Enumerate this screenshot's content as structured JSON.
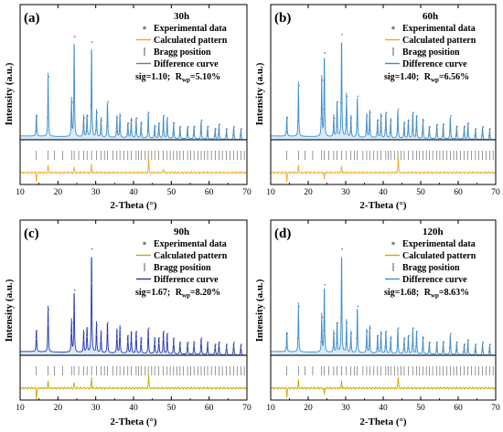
{
  "chart_data": [
    {
      "type": "line",
      "panel_label": "(a)",
      "legend_title": "30h",
      "xlabel": "2-Theta (°)",
      "ylabel": "Intensity (a.u.)",
      "xlim": [
        10,
        70
      ],
      "x_ticks": [
        "10",
        "20",
        "30",
        "40",
        "50",
        "60",
        "70"
      ],
      "grid": false,
      "legend_position": "top-right",
      "legend": [
        "Experimental data",
        "Calculated pattern",
        "Bragg position",
        "Difference curve"
      ],
      "fit": {
        "sig": "sig=1.10;",
        "rwp_prefix": "R",
        "rwp_sub": "wp",
        "rwp_value": "=5.10%"
      },
      "colors": {
        "experimental": "#7b8494",
        "calculated": "#f5a623",
        "bragg": "#555555",
        "difference": "#3a8fd0",
        "fill": "#cfe6f7"
      },
      "peaks": [
        [
          14.3,
          0.22
        ],
        [
          17.4,
          0.58
        ],
        [
          23.6,
          0.35
        ],
        [
          24.3,
          0.95
        ],
        [
          26.8,
          0.2
        ],
        [
          27.7,
          0.22
        ],
        [
          28.9,
          0.9
        ],
        [
          30.2,
          0.25
        ],
        [
          31.4,
          0.18
        ],
        [
          33.1,
          0.35
        ],
        [
          35.6,
          0.2
        ],
        [
          36.4,
          0.22
        ],
        [
          38.5,
          0.15
        ],
        [
          39.4,
          0.18
        ],
        [
          40.7,
          0.2
        ],
        [
          42.0,
          0.15
        ],
        [
          43.9,
          0.25
        ],
        [
          45.6,
          0.12
        ],
        [
          46.7,
          0.15
        ],
        [
          47.9,
          0.22
        ],
        [
          48.9,
          0.2
        ],
        [
          50.6,
          0.15
        ],
        [
          52.3,
          0.12
        ],
        [
          54.3,
          0.12
        ],
        [
          56.0,
          0.12
        ],
        [
          57.9,
          0.18
        ],
        [
          59.6,
          0.12
        ],
        [
          61.6,
          0.1
        ],
        [
          62.6,
          0.14
        ],
        [
          64.6,
          0.1
        ],
        [
          66.5,
          0.12
        ],
        [
          68.4,
          0.1
        ]
      ],
      "bragg_positions": [
        14.3,
        17.4,
        19.1,
        21.2,
        23.6,
        24.3,
        25.5,
        26.8,
        27.7,
        28.9,
        30.2,
        31.4,
        32.3,
        33.1,
        34.6,
        35.6,
        36.4,
        37.5,
        38.5,
        39.4,
        40.7,
        41.3,
        42.0,
        43.1,
        43.9,
        44.8,
        45.6,
        46.7,
        47.9,
        48.9,
        49.7,
        50.6,
        51.5,
        52.3,
        53.2,
        54.3,
        55.1,
        56.0,
        57.0,
        57.9,
        58.8,
        59.6,
        60.6,
        61.6,
        62.6,
        63.5,
        64.6,
        65.5,
        66.5,
        67.4,
        68.4,
        69.3
      ],
      "difference_spikes": [
        [
          14.3,
          -0.08
        ],
        [
          17.4,
          0.06
        ],
        [
          24.3,
          0.05
        ],
        [
          28.9,
          0.08
        ],
        [
          44.0,
          0.14
        ],
        [
          47.9,
          0.04
        ]
      ]
    },
    {
      "type": "line",
      "panel_label": "(b)",
      "legend_title": "60h",
      "xlabel": "2-Theta (°)",
      "ylabel": "Intensity (a.u.)",
      "xlim": [
        10,
        70
      ],
      "x_ticks": [
        "10",
        "20",
        "30",
        "40",
        "50",
        "60",
        "70"
      ],
      "grid": false,
      "legend_position": "top-right",
      "legend": [
        "Experimental data",
        "Calculated pattern",
        "Bragg position",
        "Difference curve"
      ],
      "fit": {
        "sig": "sig=1.40;",
        "rwp_prefix": "R",
        "rwp_sub": "wp",
        "rwp_value": "=6.56%"
      },
      "colors": {
        "experimental": "#7b8494",
        "calculated": "#f5a623",
        "bragg": "#555555",
        "difference": "#3a8fd0",
        "fill": "#cfe6f7"
      },
      "peaks": [
        [
          14.3,
          0.2
        ],
        [
          17.4,
          0.5
        ],
        [
          23.6,
          0.55
        ],
        [
          24.3,
          0.8
        ],
        [
          26.8,
          0.2
        ],
        [
          27.7,
          0.35
        ],
        [
          28.9,
          0.97
        ],
        [
          30.2,
          0.4
        ],
        [
          31.4,
          0.2
        ],
        [
          33.1,
          0.4
        ],
        [
          35.6,
          0.22
        ],
        [
          36.4,
          0.25
        ],
        [
          38.5,
          0.18
        ],
        [
          39.4,
          0.22
        ],
        [
          40.7,
          0.25
        ],
        [
          42.0,
          0.18
        ],
        [
          43.9,
          0.28
        ],
        [
          45.6,
          0.15
        ],
        [
          46.7,
          0.18
        ],
        [
          47.9,
          0.25
        ],
        [
          48.9,
          0.22
        ],
        [
          50.6,
          0.18
        ],
        [
          52.3,
          0.12
        ],
        [
          54.3,
          0.14
        ],
        [
          56.0,
          0.14
        ],
        [
          57.9,
          0.22
        ],
        [
          59.6,
          0.12
        ],
        [
          61.6,
          0.12
        ],
        [
          62.6,
          0.15
        ],
        [
          64.6,
          0.1
        ],
        [
          66.5,
          0.12
        ],
        [
          68.4,
          0.1
        ]
      ],
      "bragg_positions": [
        14.3,
        17.4,
        19.1,
        21.2,
        23.6,
        24.3,
        25.5,
        26.8,
        27.7,
        28.9,
        30.2,
        31.4,
        32.3,
        33.1,
        34.6,
        35.6,
        36.4,
        37.5,
        38.5,
        39.4,
        40.7,
        41.3,
        42.0,
        43.1,
        43.9,
        44.8,
        45.6,
        46.7,
        47.9,
        48.9,
        49.7,
        50.6,
        51.5,
        52.3,
        53.2,
        54.3,
        55.1,
        56.0,
        57.0,
        57.9,
        58.8,
        59.6,
        60.6,
        61.6,
        62.6,
        63.5,
        64.6,
        65.5,
        66.5,
        67.4,
        68.4,
        69.3
      ],
      "difference_spikes": [
        [
          14.3,
          -0.08
        ],
        [
          17.4,
          0.06
        ],
        [
          24.3,
          -0.06
        ],
        [
          28.9,
          0.06
        ],
        [
          44.0,
          0.14
        ]
      ]
    },
    {
      "type": "line",
      "panel_label": "(c)",
      "legend_title": "90h",
      "xlabel": "2-Theta (°)",
      "ylabel": "Intensity (a.u.)",
      "xlim": [
        10,
        70
      ],
      "x_ticks": [
        "10",
        "20",
        "30",
        "40",
        "50",
        "60",
        "70"
      ],
      "grid": false,
      "legend_position": "top-right",
      "legend": [
        "Experimental data",
        "Calculated pattern",
        "Bragg position",
        "Difference curve"
      ],
      "fit": {
        "sig": "sig=1.67;",
        "rwp_prefix": "R",
        "rwp_sub": "wp",
        "rwp_value": "=8.20%"
      },
      "colors": {
        "experimental": "#7b8494",
        "calculated": "#c9a800",
        "bragg": "#555555",
        "difference": "#2233bb",
        "fill": "#cfe6f7"
      },
      "peaks": [
        [
          14.3,
          0.22
        ],
        [
          17.4,
          0.42
        ],
        [
          23.6,
          0.3
        ],
        [
          24.3,
          0.6
        ],
        [
          26.8,
          0.2
        ],
        [
          27.7,
          0.25
        ],
        [
          28.9,
          0.98
        ],
        [
          30.2,
          0.28
        ],
        [
          31.4,
          0.2
        ],
        [
          33.1,
          0.3
        ],
        [
          35.6,
          0.22
        ],
        [
          36.4,
          0.25
        ],
        [
          38.5,
          0.18
        ],
        [
          39.4,
          0.2
        ],
        [
          40.7,
          0.22
        ],
        [
          42.0,
          0.15
        ],
        [
          43.9,
          0.25
        ],
        [
          45.6,
          0.15
        ],
        [
          46.7,
          0.16
        ],
        [
          47.9,
          0.22
        ],
        [
          48.9,
          0.2
        ],
        [
          50.6,
          0.15
        ],
        [
          52.3,
          0.12
        ],
        [
          54.3,
          0.12
        ],
        [
          56.0,
          0.12
        ],
        [
          57.9,
          0.16
        ],
        [
          59.6,
          0.12
        ],
        [
          61.6,
          0.1
        ],
        [
          62.6,
          0.12
        ],
        [
          64.6,
          0.1
        ],
        [
          66.5,
          0.12
        ],
        [
          68.4,
          0.1
        ]
      ],
      "bragg_positions": [
        14.3,
        17.4,
        19.1,
        21.2,
        23.6,
        24.3,
        25.5,
        26.8,
        27.7,
        28.9,
        30.2,
        31.4,
        32.3,
        33.1,
        34.6,
        35.6,
        36.4,
        37.5,
        38.5,
        39.4,
        40.7,
        41.3,
        42.0,
        43.1,
        43.9,
        44.8,
        45.6,
        46.7,
        47.9,
        48.9,
        49.7,
        50.6,
        51.5,
        52.3,
        53.2,
        54.3,
        55.1,
        56.0,
        57.0,
        57.9,
        58.8,
        59.6,
        60.6,
        61.6,
        62.6,
        63.5,
        64.6,
        65.5,
        66.5,
        67.4,
        68.4,
        69.3
      ],
      "difference_spikes": [
        [
          14.3,
          -0.1
        ],
        [
          17.4,
          0.06
        ],
        [
          24.3,
          0.05
        ],
        [
          28.9,
          0.1
        ],
        [
          44.0,
          0.12
        ]
      ]
    },
    {
      "type": "line",
      "panel_label": "(d)",
      "legend_title": "120h",
      "xlabel": "2-Theta (°)",
      "ylabel": "Intensity (a.u.)",
      "xlim": [
        10,
        70
      ],
      "x_ticks": [
        "10",
        "20",
        "30",
        "40",
        "50",
        "60",
        "70"
      ],
      "grid": false,
      "legend_position": "top-right",
      "legend": [
        "Experimental data",
        "Calculated pattern",
        "Bragg position",
        "Difference curve"
      ],
      "fit": {
        "sig": "sig=1.68;",
        "rwp_prefix": "R",
        "rwp_sub": "wp",
        "rwp_value": "=8.63%"
      },
      "colors": {
        "experimental": "#7b8494",
        "calculated": "#c9a800",
        "bragg": "#555555",
        "difference": "#3a8fd0",
        "fill": "#cfe6f7"
      },
      "peaks": [
        [
          14.3,
          0.2
        ],
        [
          17.4,
          0.45
        ],
        [
          23.6,
          0.35
        ],
        [
          24.3,
          0.65
        ],
        [
          26.8,
          0.2
        ],
        [
          27.7,
          0.3
        ],
        [
          28.9,
          0.98
        ],
        [
          30.2,
          0.3
        ],
        [
          31.4,
          0.2
        ],
        [
          33.1,
          0.45
        ],
        [
          35.6,
          0.22
        ],
        [
          36.4,
          0.25
        ],
        [
          38.5,
          0.18
        ],
        [
          39.4,
          0.2
        ],
        [
          40.7,
          0.22
        ],
        [
          42.0,
          0.16
        ],
        [
          43.9,
          0.25
        ],
        [
          45.6,
          0.15
        ],
        [
          46.7,
          0.18
        ],
        [
          47.9,
          0.25
        ],
        [
          48.9,
          0.22
        ],
        [
          50.6,
          0.16
        ],
        [
          52.3,
          0.12
        ],
        [
          54.3,
          0.12
        ],
        [
          56.0,
          0.12
        ],
        [
          57.9,
          0.2
        ],
        [
          59.6,
          0.12
        ],
        [
          61.6,
          0.1
        ],
        [
          62.6,
          0.14
        ],
        [
          64.6,
          0.1
        ],
        [
          66.5,
          0.12
        ],
        [
          68.4,
          0.1
        ]
      ],
      "bragg_positions": [
        14.3,
        17.4,
        19.1,
        21.2,
        23.6,
        24.3,
        25.5,
        26.8,
        27.7,
        28.9,
        30.2,
        31.4,
        32.3,
        33.1,
        34.6,
        35.6,
        36.4,
        37.5,
        38.5,
        39.4,
        40.7,
        41.3,
        42.0,
        43.1,
        43.9,
        44.8,
        45.6,
        46.7,
        47.9,
        48.9,
        49.7,
        50.6,
        51.5,
        52.3,
        53.2,
        54.3,
        55.1,
        56.0,
        57.0,
        57.9,
        58.8,
        59.6,
        60.6,
        61.6,
        62.6,
        63.5,
        64.6,
        65.5,
        66.5,
        67.4,
        68.4,
        69.3
      ],
      "difference_spikes": [
        [
          14.3,
          -0.08
        ],
        [
          17.4,
          0.07
        ],
        [
          24.3,
          -0.06
        ],
        [
          28.9,
          0.07
        ],
        [
          44.0,
          0.1
        ]
      ]
    }
  ]
}
